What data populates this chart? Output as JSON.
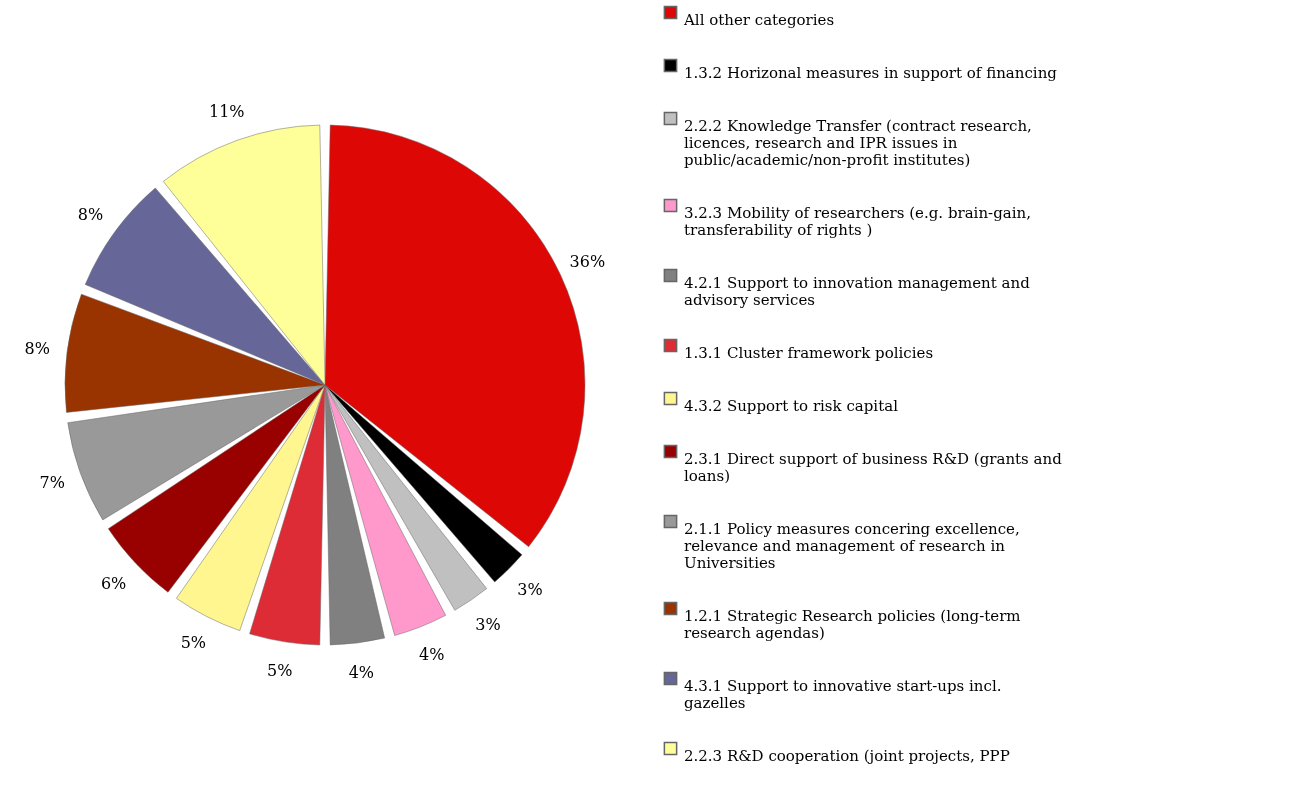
{
  "chart_data": {
    "type": "pie",
    "categories": [
      "All other categories",
      "1.3.2 Horizonal measures in support of financing",
      "2.2.2 Knowledge Transfer (contract research, licences, research and IPR issues in public/academic/non-profit institutes)",
      "3.2.3 Mobility of researchers (e.g. brain-gain, transferability of rights )",
      "4.2.1 Support to innovation management and advisory services",
      "1.3.1 Cluster framework policies",
      "4.3.2 Support to risk capital",
      "2.3.1 Direct support of business R&D (grants and loans)",
      "2.1.1 Policy measures concering excellence, relevance and management of research in Universities",
      "1.2.1 Strategic Research policies (long-term research agendas)",
      "4.3.1 Support to innovative start-ups incl. gazelles",
      "2.2.3 R&D cooperation (joint projects, PPP"
    ],
    "values": [
      36,
      3,
      3,
      4,
      4,
      5,
      5,
      6,
      7,
      8,
      8,
      11
    ],
    "value_labels": [
      "36%",
      "3%",
      "3%",
      "4%",
      "4%",
      "5%",
      "5%",
      "6%",
      "7%",
      "8%",
      "8%",
      "11%"
    ],
    "colors": [
      "#dd0806",
      "#000000",
      "#c0c0c0",
      "#ff99cc",
      "#808080",
      "#dd2c35",
      "#fff68f",
      "#990000",
      "#999999",
      "#993300",
      "#666699",
      "#ffff99"
    ],
    "legend": "right"
  }
}
